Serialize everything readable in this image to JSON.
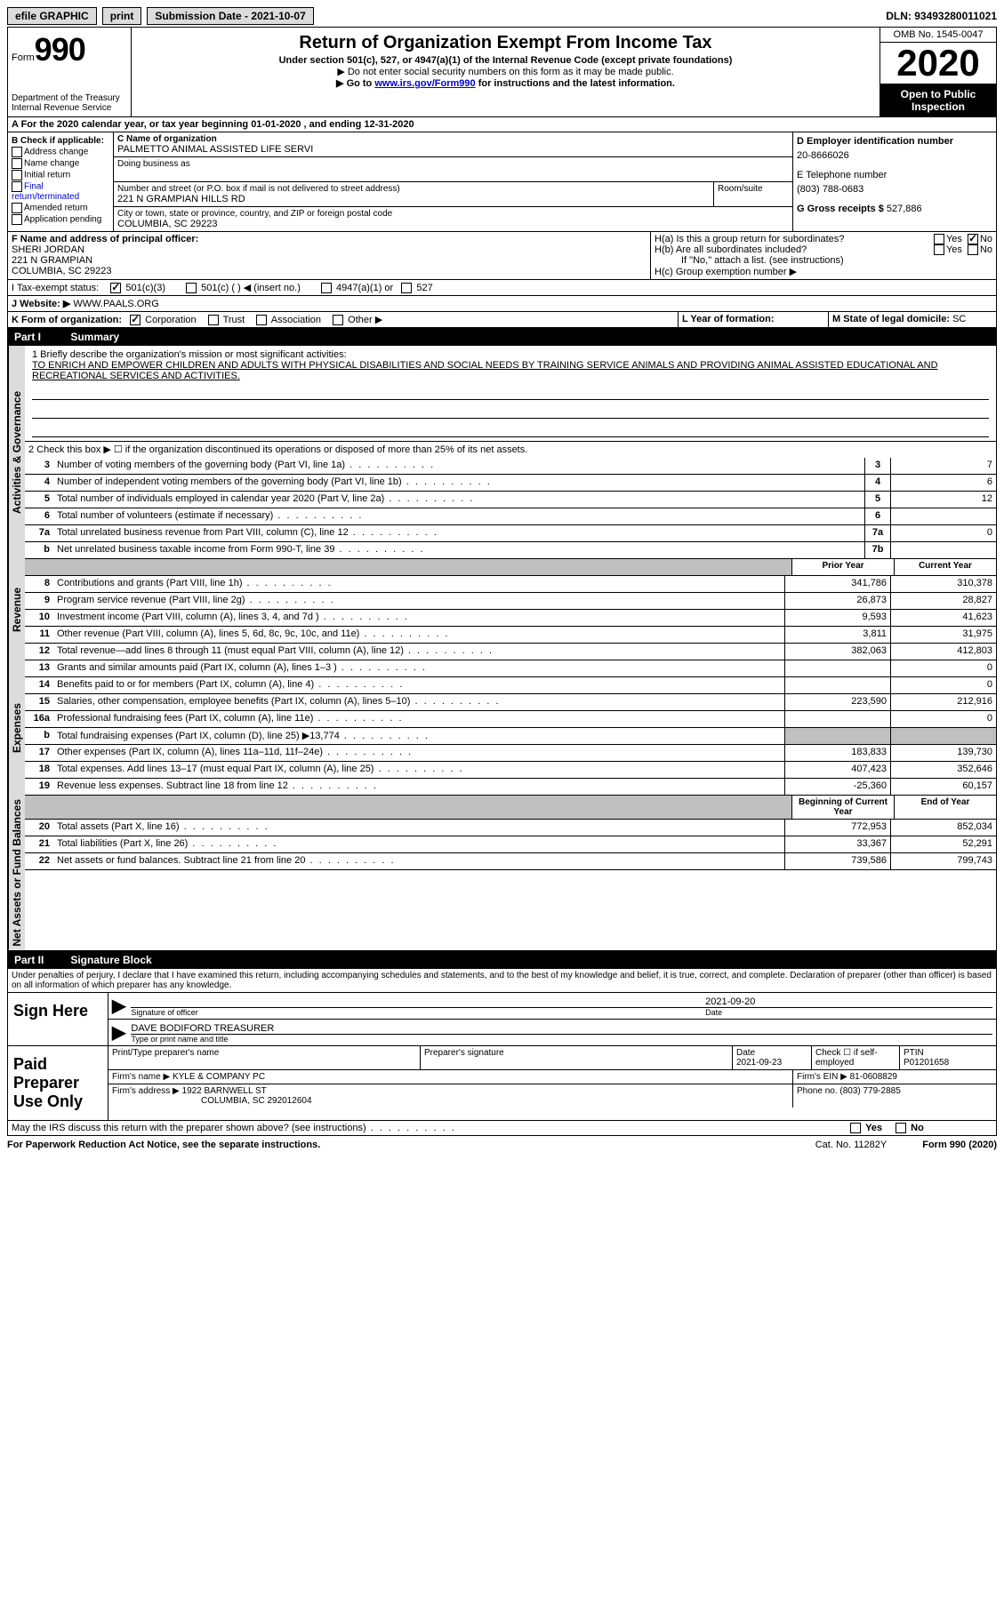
{
  "topbar": {
    "efile": "efile GRAPHIC",
    "print": "print",
    "submission_label": "Submission Date - ",
    "submission_date": "2021-10-07",
    "dln_label": "DLN: ",
    "dln": "93493280011021"
  },
  "header": {
    "form_word": "Form",
    "form_num": "990",
    "dept": "Department of the Treasury\nInternal Revenue Service",
    "title": "Return of Organization Exempt From Income Tax",
    "subtitle": "Under section 501(c), 527, or 4947(a)(1) of the Internal Revenue Code (except private foundations)",
    "note1": "▶ Do not enter social security numbers on this form as it may be made public.",
    "note2_pre": "▶ Go to ",
    "note2_link": "www.irs.gov/Form990",
    "note2_post": " for instructions and the latest information.",
    "omb": "OMB No. 1545-0047",
    "year": "2020",
    "inspection": "Open to Public Inspection"
  },
  "period": {
    "line": "A For the 2020 calendar year, or tax year beginning 01-01-2020   , and ending 12-31-2020"
  },
  "box_b": {
    "label": "B Check if applicable:",
    "items": [
      "Address change",
      "Name change",
      "Initial return",
      "Final return/terminated",
      "Amended return",
      "Application pending"
    ]
  },
  "box_c": {
    "name_label": "C Name of organization",
    "name": "PALMETTO ANIMAL ASSISTED LIFE SERVI",
    "dba_label": "Doing business as",
    "addr_label": "Number and street (or P.O. box if mail is not delivered to street address)",
    "room_label": "Room/suite",
    "addr": "221 N GRAMPIAN HILLS RD",
    "city_label": "City or town, state or province, country, and ZIP or foreign postal code",
    "city": "COLUMBIA, SC  29223"
  },
  "box_d": {
    "ein_label": "D Employer identification number",
    "ein": "20-8666026",
    "phone_label": "E Telephone number",
    "phone": "(803) 788-0683",
    "gross_label": "G Gross receipts $ ",
    "gross": "527,886"
  },
  "box_f": {
    "label": "F Name and address of principal officer:",
    "name": "SHERI JORDAN",
    "addr1": "221 N GRAMPIAN",
    "addr2": "COLUMBIA, SC  29223"
  },
  "box_h": {
    "a_label": "H(a)  Is this a group return for subordinates?",
    "b_label": "H(b)  Are all subordinates included?",
    "b_note": "If \"No,\" attach a list. (see instructions)",
    "c_label": "H(c)  Group exemption number ▶",
    "yes": "Yes",
    "no": "No"
  },
  "box_i": {
    "label": "I  Tax-exempt status:",
    "opt1": "501(c)(3)",
    "opt2": "501(c) (   ) ◀ (insert no.)",
    "opt3": "4947(a)(1) or",
    "opt4": "527"
  },
  "box_j": {
    "label": "J  Website: ▶",
    "value": "WWW.PAALS.ORG"
  },
  "box_k": {
    "label": "K Form of organization:",
    "opts": [
      "Corporation",
      "Trust",
      "Association",
      "Other ▶"
    ]
  },
  "box_l": {
    "label_l": "L Year of formation:",
    "label_m": "M State of legal domicile: ",
    "state": "SC"
  },
  "part1": {
    "header": "Part I",
    "title": "Summary",
    "q1_label": "1  Briefly describe the organization's mission or most significant activities:",
    "mission": "TO ENRICH AND EMPOWER CHILDREN AND ADULTS WITH PHYSICAL DISABILITIES AND SOCIAL NEEDS BY TRAINING SERVICE ANIMALS AND PROVIDING ANIMAL ASSISTED EDUCATIONAL AND RECREATIONAL SERVICES AND ACTIVITIES.",
    "q2": "2  Check this box ▶ ☐  if the organization discontinued its operations or disposed of more than 25% of its net assets.",
    "tabs": {
      "gov": "Activities & Governance",
      "rev": "Revenue",
      "exp": "Expenses",
      "net": "Net Assets or Fund Balances"
    },
    "col_prior": "Prior Year",
    "col_current": "Current Year",
    "col_begin": "Beginning of Current Year",
    "col_end": "End of Year",
    "lines_gov": [
      {
        "n": "3",
        "d": "Number of voting members of the governing body (Part VI, line 1a)",
        "box": "3",
        "v": "7"
      },
      {
        "n": "4",
        "d": "Number of independent voting members of the governing body (Part VI, line 1b)",
        "box": "4",
        "v": "6"
      },
      {
        "n": "5",
        "d": "Total number of individuals employed in calendar year 2020 (Part V, line 2a)",
        "box": "5",
        "v": "12"
      },
      {
        "n": "6",
        "d": "Total number of volunteers (estimate if necessary)",
        "box": "6",
        "v": ""
      },
      {
        "n": "7a",
        "d": "Total unrelated business revenue from Part VIII, column (C), line 12",
        "box": "7a",
        "v": "0"
      },
      {
        "n": "b",
        "d": "Net unrelated business taxable income from Form 990-T, line 39",
        "box": "7b",
        "v": ""
      }
    ],
    "lines_rev": [
      {
        "n": "8",
        "d": "Contributions and grants (Part VIII, line 1h)",
        "p": "341,786",
        "c": "310,378"
      },
      {
        "n": "9",
        "d": "Program service revenue (Part VIII, line 2g)",
        "p": "26,873",
        "c": "28,827"
      },
      {
        "n": "10",
        "d": "Investment income (Part VIII, column (A), lines 3, 4, and 7d )",
        "p": "9,593",
        "c": "41,623"
      },
      {
        "n": "11",
        "d": "Other revenue (Part VIII, column (A), lines 5, 6d, 8c, 9c, 10c, and 11e)",
        "p": "3,811",
        "c": "31,975"
      },
      {
        "n": "12",
        "d": "Total revenue—add lines 8 through 11 (must equal Part VIII, column (A), line 12)",
        "p": "382,063",
        "c": "412,803"
      }
    ],
    "lines_exp": [
      {
        "n": "13",
        "d": "Grants and similar amounts paid (Part IX, column (A), lines 1–3 )",
        "p": "",
        "c": "0"
      },
      {
        "n": "14",
        "d": "Benefits paid to or for members (Part IX, column (A), line 4)",
        "p": "",
        "c": "0"
      },
      {
        "n": "15",
        "d": "Salaries, other compensation, employee benefits (Part IX, column (A), lines 5–10)",
        "p": "223,590",
        "c": "212,916"
      },
      {
        "n": "16a",
        "d": "Professional fundraising fees (Part IX, column (A), line 11e)",
        "p": "",
        "c": "0"
      },
      {
        "n": "b",
        "d": "Total fundraising expenses (Part IX, column (D), line 25) ▶13,774",
        "p": "SHADE",
        "c": "SHADE"
      },
      {
        "n": "17",
        "d": "Other expenses (Part IX, column (A), lines 11a–11d, 11f–24e)",
        "p": "183,833",
        "c": "139,730"
      },
      {
        "n": "18",
        "d": "Total expenses. Add lines 13–17 (must equal Part IX, column (A), line 25)",
        "p": "407,423",
        "c": "352,646"
      },
      {
        "n": "19",
        "d": "Revenue less expenses. Subtract line 18 from line 12",
        "p": "-25,360",
        "c": "60,157"
      }
    ],
    "lines_net": [
      {
        "n": "20",
        "d": "Total assets (Part X, line 16)",
        "p": "772,953",
        "c": "852,034"
      },
      {
        "n": "21",
        "d": "Total liabilities (Part X, line 26)",
        "p": "33,367",
        "c": "52,291"
      },
      {
        "n": "22",
        "d": "Net assets or fund balances. Subtract line 21 from line 20",
        "p": "739,586",
        "c": "799,743"
      }
    ]
  },
  "part2": {
    "header": "Part II",
    "title": "Signature Block",
    "decl": "Under penalties of perjury, I declare that I have examined this return, including accompanying schedules and statements, and to the best of my knowledge and belief, it is true, correct, and complete. Declaration of preparer (other than officer) is based on all information of which preparer has any knowledge."
  },
  "sign": {
    "label": "Sign Here",
    "sig_label": "Signature of officer",
    "date_label": "Date",
    "date": "2021-09-20",
    "name": "DAVE BODIFORD  TREASURER",
    "name_label": "Type or print name and title"
  },
  "prep": {
    "label": "Paid Preparer Use Only",
    "h_name": "Print/Type preparer's name",
    "h_sig": "Preparer's signature",
    "h_date": "Date",
    "date": "2021-09-23",
    "h_check": "Check ☐ if self-employed",
    "h_ptin": "PTIN",
    "ptin": "P01201658",
    "firm_name_label": "Firm's name    ▶ ",
    "firm_name": "KYLE & COMPANY PC",
    "firm_ein_label": "Firm's EIN ▶ ",
    "firm_ein": "81-0608829",
    "firm_addr_label": "Firm's address ▶ ",
    "firm_addr": "1922 BARNWELL ST",
    "firm_addr2": "COLUMBIA, SC  292012604",
    "phone_label": "Phone no. ",
    "phone": "(803) 779-2885"
  },
  "discuss": {
    "q": "May the IRS discuss this return with the preparer shown above? (see instructions)",
    "yes": "Yes",
    "no": "No"
  },
  "footer": {
    "pra": "For Paperwork Reduction Act Notice, see the separate instructions.",
    "cat": "Cat. No. 11282Y",
    "form": "Form 990 (2020)"
  }
}
